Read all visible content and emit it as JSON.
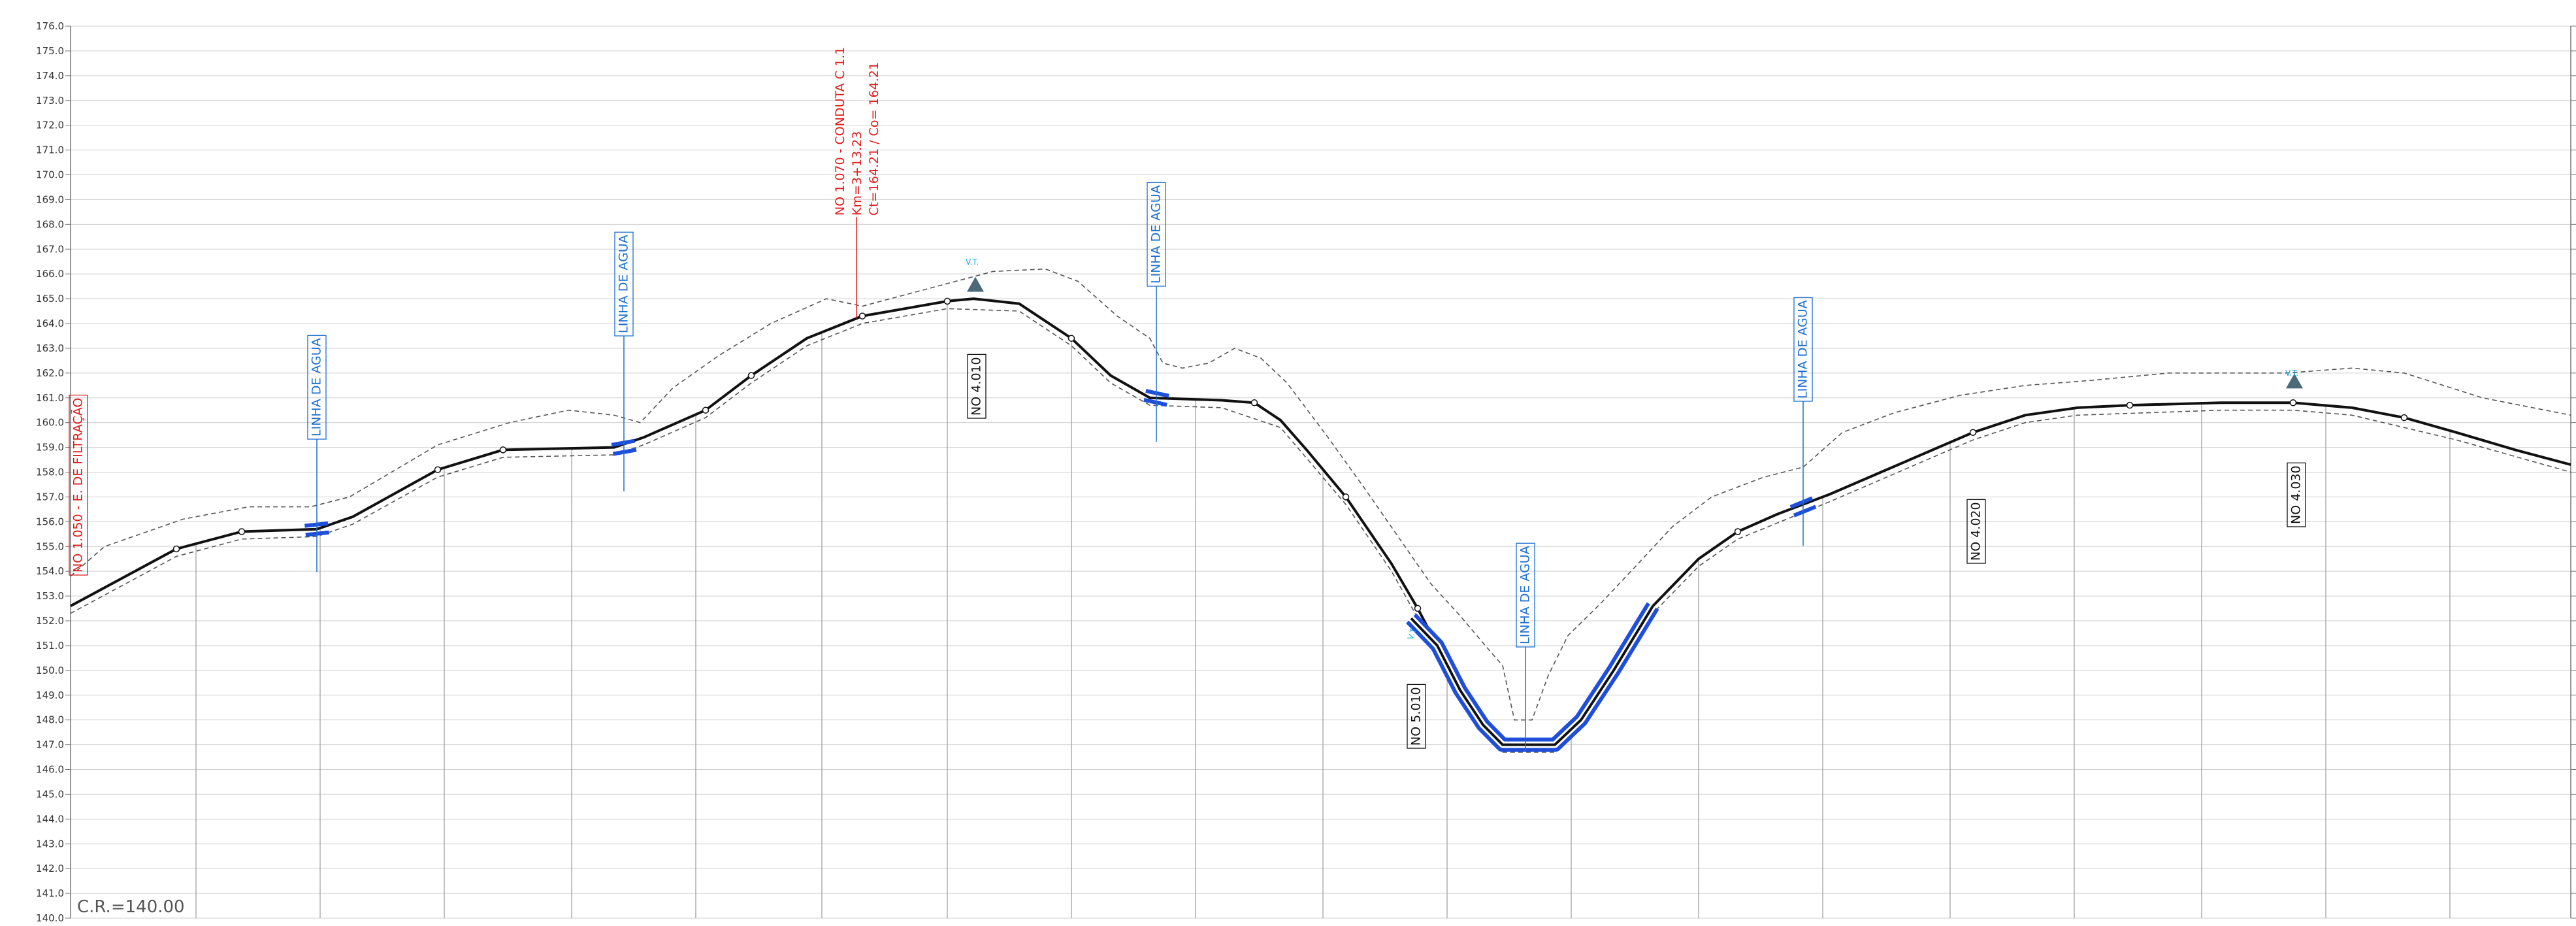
{
  "profile": {
    "datum_label": "C.R.=140.00",
    "y_axis": {
      "min": 140,
      "max": 176,
      "step": 1,
      "left_decimals": 1,
      "right_decimals": 0
    },
    "colors": {
      "terrain": "#111111",
      "envelope": "#555555",
      "pipe": "#1f4fd8",
      "grid": "#cfcfcf",
      "station": "#9a9a9a",
      "red": "#e01b1b",
      "blue": "#1c6fd1",
      "cyan": "#1aa6d9",
      "marker": "#4a6a7a"
    },
    "labels": {
      "water_line": "LINHA DE AGUA",
      "node_left": "NO 1.050 - E. DE FILTRAÇÃO",
      "node_c11": {
        "line1": "NO 1.070 - CONDUTA C 1.1",
        "line2": "Km=3+13.23",
        "line3": "Ct=164.21 / Co= 164.21"
      },
      "no_4010": "NO 4.010",
      "no_5010": "NO 5.010",
      "no_4020": "NO 4.020",
      "no_4030": "NO 4.030",
      "vt": "V.T."
    },
    "icons": [
      "air-valve-triangle-icon",
      "air-valve-triangle-icon"
    ]
  }
}
